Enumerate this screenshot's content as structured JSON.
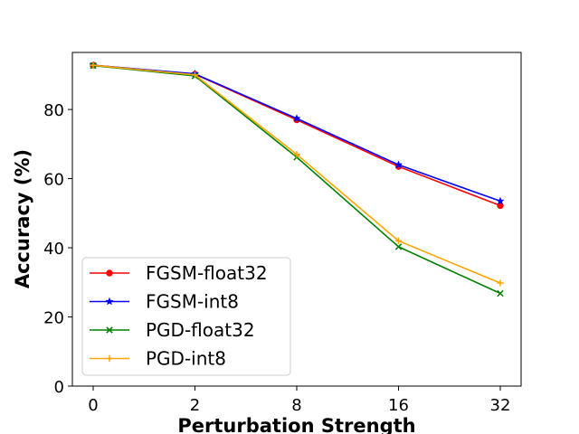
{
  "chart_data": {
    "type": "line",
    "title": "",
    "xlabel": "Perturbation Strength",
    "ylabel": "Accuracy (%)",
    "categories": [
      "0",
      "2",
      "8",
      "16",
      "32"
    ],
    "ylim": [
      0,
      96.5
    ],
    "yticks": [
      0,
      20,
      40,
      60,
      80
    ],
    "grid": false,
    "legend_position": "lower-left",
    "series": [
      {
        "name": "FGSM-float32",
        "color": "#ff0000",
        "marker": "circle",
        "values": [
          92.8,
          90.2,
          77.0,
          63.5,
          52.2
        ]
      },
      {
        "name": "FGSM-int8",
        "color": "#0000ff",
        "marker": "star",
        "values": [
          92.8,
          90.3,
          77.4,
          64.0,
          53.5
        ]
      },
      {
        "name": "PGD-float32",
        "color": "#008000",
        "marker": "x",
        "values": [
          92.7,
          89.7,
          66.2,
          40.3,
          26.8
        ]
      },
      {
        "name": "PGD-int8",
        "color": "#ffa500",
        "marker": "plus",
        "values": [
          92.8,
          90.0,
          67.0,
          42.0,
          29.8
        ]
      }
    ]
  }
}
